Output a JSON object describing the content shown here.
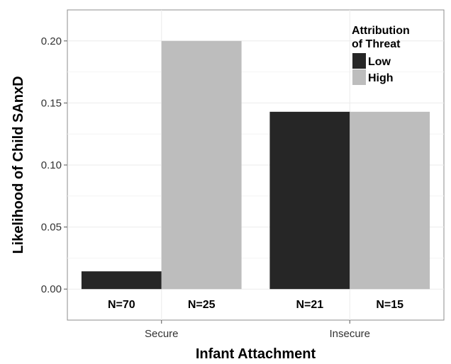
{
  "chart_data": {
    "type": "bar",
    "xlabel": "Infant Attachment",
    "ylabel": "Likelihood of Child SAnxD",
    "ylim": [
      -0.025,
      0.225
    ],
    "yticks": [
      0.0,
      0.05,
      0.1,
      0.15,
      0.2
    ],
    "ytick_labels": [
      "0.00",
      "0.05",
      "0.10",
      "0.15",
      "0.20"
    ],
    "grid": true,
    "legend": {
      "title_lines": [
        "Attribution",
        "of Threat"
      ],
      "placement": "top-right"
    },
    "categories": [
      "Secure",
      "Insecure"
    ],
    "series": [
      {
        "name": "Low",
        "color": "#262626",
        "values": [
          0.0143,
          0.1429
        ],
        "n_labels": [
          "N=70",
          "N=21"
        ]
      },
      {
        "name": "High",
        "color": "#bdbdbd",
        "values": [
          0.2,
          0.1429
        ],
        "n_labels": [
          "N=25",
          "N=15"
        ]
      }
    ],
    "panel_background": "#ffffff",
    "grid_color": "#ebebeb"
  }
}
